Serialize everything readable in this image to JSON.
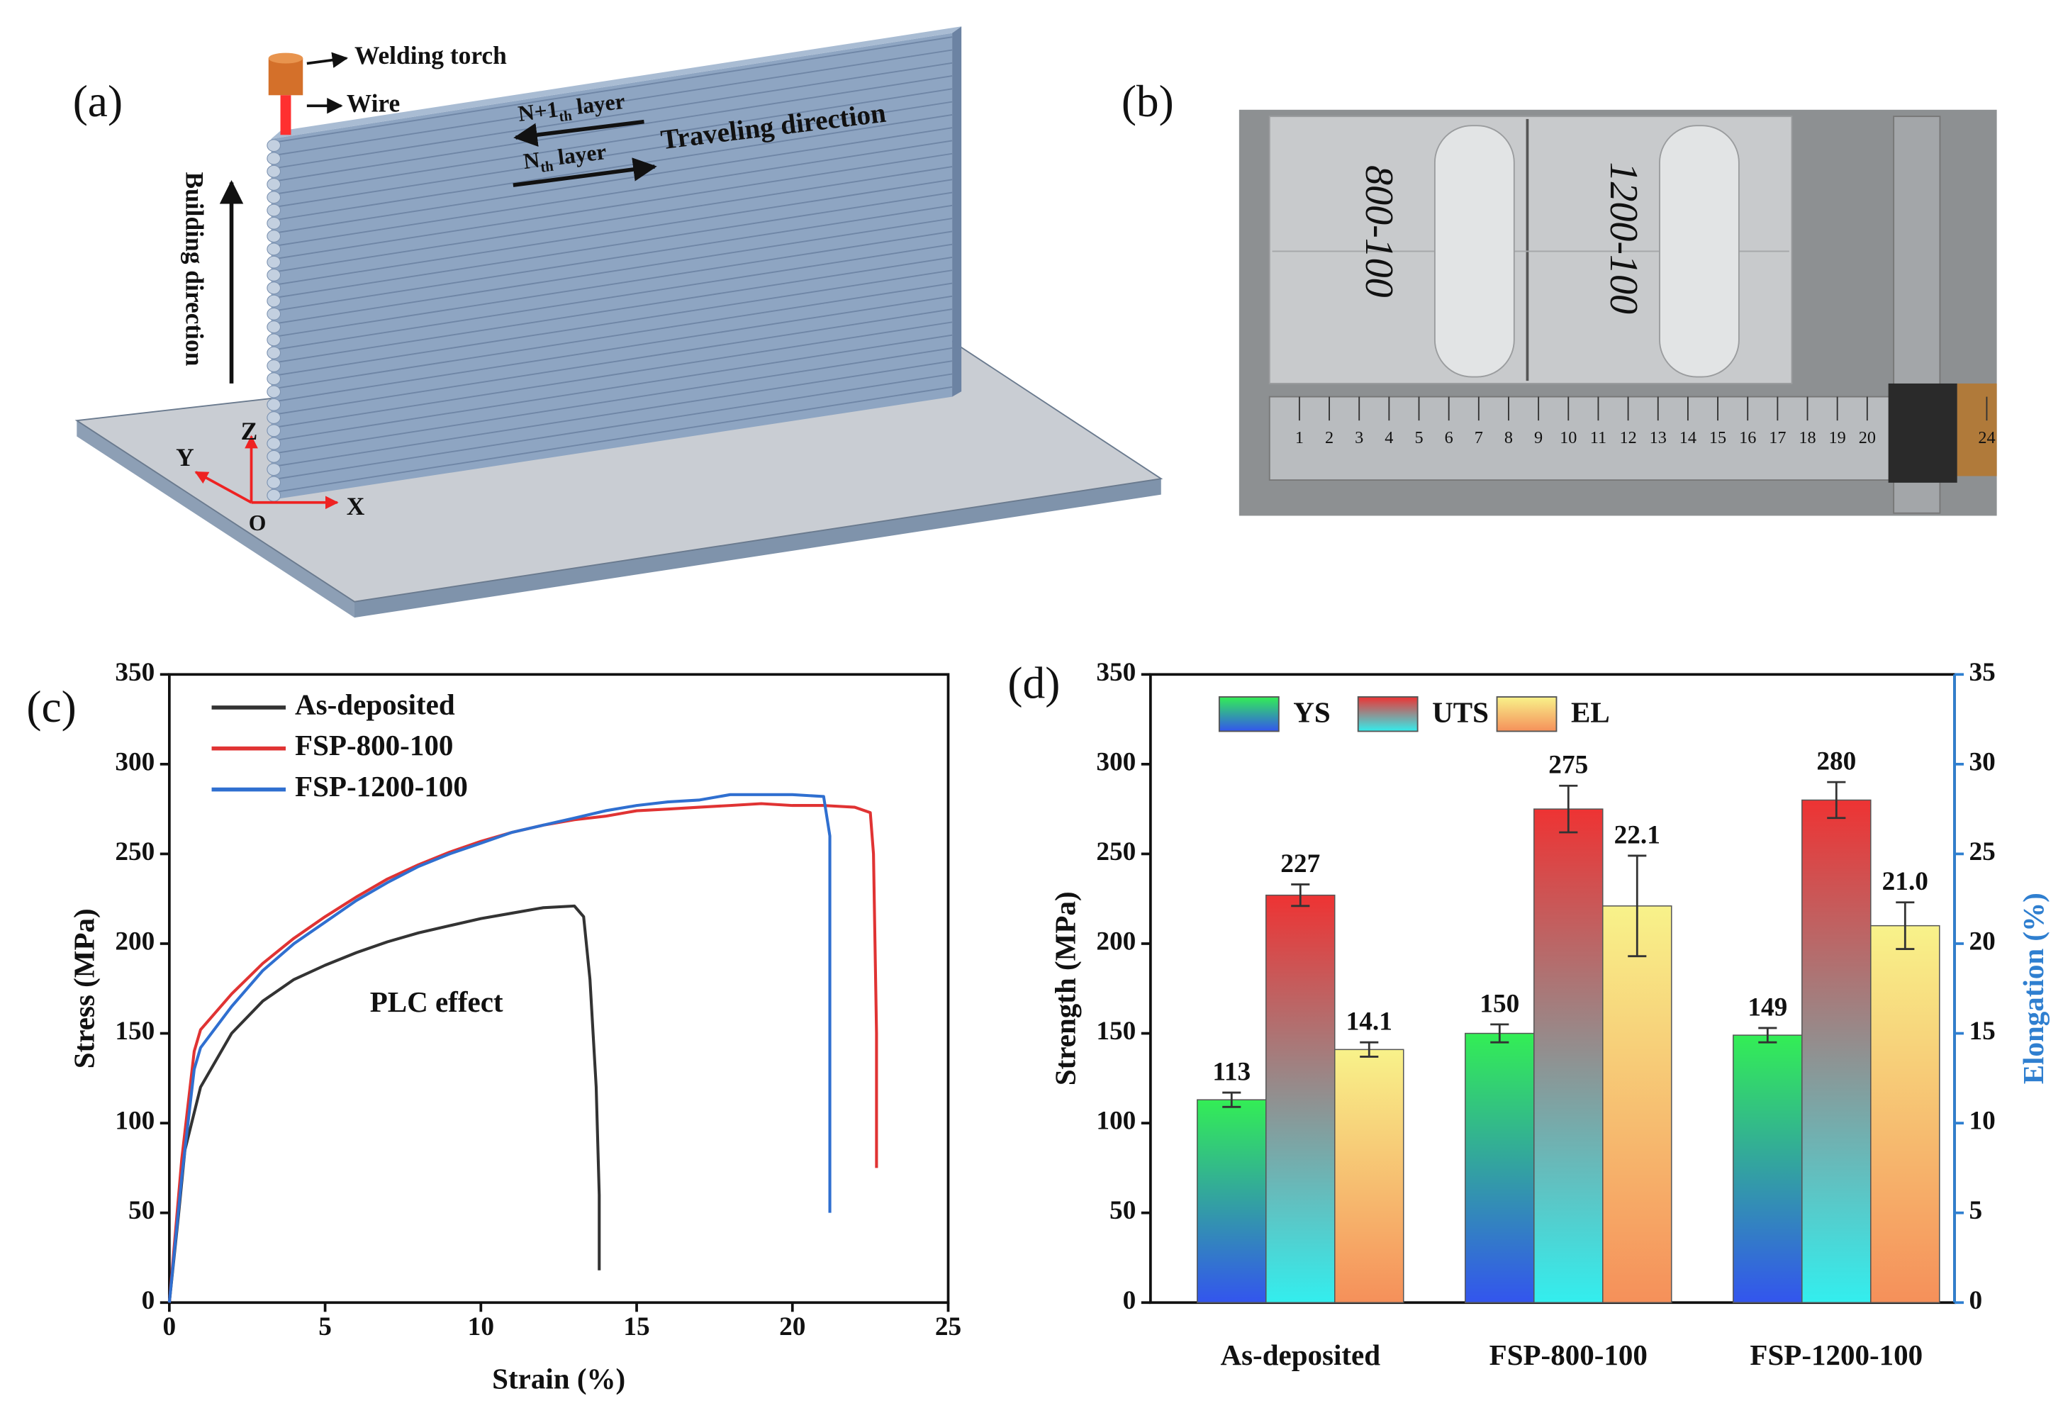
{
  "diagram": {
    "panel_label": "(a)",
    "welding_torch": "Welding torch",
    "wire": "Wire",
    "upper_layer": {
      "base": "N+1",
      "sub": "th",
      "rest": " layer"
    },
    "lower_layer": {
      "base": "N",
      "sub": "th",
      "rest": " layer"
    },
    "traveling_direction": "Traveling direction",
    "building_direction": "Building direction",
    "axes": {
      "z": "Z",
      "y": "Y",
      "x": "X",
      "origin": "O"
    }
  },
  "photo": {
    "panel_label": "(b)",
    "sample_labels": [
      "800-100",
      "1200-100"
    ],
    "ruler_numbers": [
      1,
      2,
      3,
      4,
      5,
      6,
      7,
      8,
      9,
      10,
      11,
      12,
      13,
      14,
      15,
      16,
      17,
      18,
      19,
      20,
      24
    ]
  },
  "chart_data": [
    {
      "type": "line",
      "panel_label": "(c)",
      "xlabel": "Strain (%)",
      "ylabel": "Stress (MPa)",
      "annotation": "PLC effect",
      "xlim": [
        0,
        25
      ],
      "xticks": [
        0,
        5,
        10,
        15,
        20,
        25
      ],
      "ylim": [
        0,
        350
      ],
      "yticks": [
        0,
        50,
        100,
        150,
        200,
        250,
        300,
        350
      ],
      "grid": false,
      "legend": "upper left",
      "series": [
        {
          "name": "As-deposited",
          "color": "#333333",
          "x": [
            0,
            0.3,
            0.5,
            1,
            2,
            3,
            4,
            5,
            6,
            7,
            8,
            9,
            10,
            11,
            12,
            13,
            13.3,
            13.5,
            13.7,
            13.8,
            13.8
          ],
          "values": [
            0,
            50,
            85,
            120,
            150,
            168,
            180,
            188,
            195,
            201,
            206,
            210,
            214,
            217,
            220,
            221,
            215,
            180,
            120,
            60,
            18
          ]
        },
        {
          "name": "FSP-800-100",
          "color": "#e03333",
          "x": [
            0,
            0.4,
            0.8,
            1,
            2,
            3,
            4,
            5,
            6,
            7,
            8,
            9,
            10,
            11,
            12,
            13,
            14,
            15,
            16,
            17,
            18,
            19,
            20,
            21,
            22,
            22.5,
            22.6,
            22.7,
            22.7
          ],
          "values": [
            0,
            80,
            140,
            152,
            172,
            189,
            203,
            215,
            226,
            236,
            244,
            251,
            257,
            262,
            266,
            269,
            271,
            274,
            275,
            276,
            277,
            278,
            277,
            277,
            276,
            273,
            250,
            150,
            75
          ]
        },
        {
          "name": "FSP-1200-100",
          "color": "#2f6fd0",
          "x": [
            0,
            0.4,
            0.8,
            1,
            2,
            3,
            4,
            5,
            6,
            7,
            8,
            9,
            10,
            11,
            12,
            13,
            14,
            15,
            16,
            17,
            18,
            19,
            20,
            21,
            21.2,
            21.2,
            21.2
          ],
          "values": [
            0,
            70,
            130,
            142,
            165,
            185,
            200,
            212,
            224,
            234,
            243,
            250,
            256,
            262,
            266,
            270,
            274,
            277,
            279,
            280,
            283,
            283,
            283,
            282,
            260,
            150,
            50
          ]
        }
      ]
    },
    {
      "type": "bar",
      "panel_label": "(d)",
      "ylabel": "Strength (MPa)",
      "y2label": "Elongation (%)",
      "y2color": "#2f7fd0",
      "categories": [
        "As-deposited",
        "FSP-800-100",
        "FSP-1200-100"
      ],
      "ylim": [
        0,
        350
      ],
      "yticks": [
        0,
        50,
        100,
        150,
        200,
        250,
        300,
        350
      ],
      "y2lim": [
        0,
        35
      ],
      "y2ticks": [
        0,
        5,
        10,
        15,
        20,
        25,
        30,
        35
      ],
      "grid": false,
      "legend": "upper left",
      "series": [
        {
          "name": "YS",
          "colors": [
            "#3355ee",
            "#33ee55"
          ],
          "values": [
            113,
            150,
            149
          ],
          "errors": [
            4,
            5,
            4
          ]
        },
        {
          "name": "UTS",
          "colors": [
            "#33eeee",
            "#ee3333"
          ],
          "values": [
            227,
            275,
            280
          ],
          "errors": [
            6,
            13,
            10
          ]
        },
        {
          "name": "EL",
          "axis": "y2",
          "colors": [
            "#f5905a",
            "#f8f28a"
          ],
          "values": [
            14.1,
            22.1,
            21.0
          ],
          "value_labels": [
            "14.1",
            "22.1",
            "21.0"
          ],
          "errors": [
            0.4,
            2.8,
            1.3
          ]
        }
      ]
    }
  ]
}
